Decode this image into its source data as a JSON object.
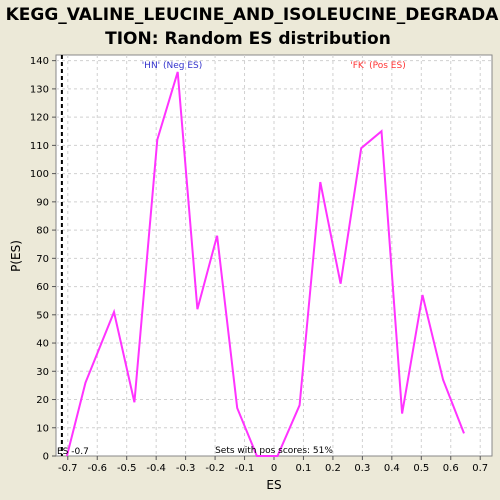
{
  "chart_data": {
    "type": "line",
    "title_lines": [
      "KEGG_VALINE_LEUCINE_AND_ISOLEUCINE_DEGRADA",
      "TION: Random ES distribution"
    ],
    "xlabel": "ES",
    "ylabel": "P(ES)",
    "xlim": [
      -0.74,
      0.74
    ],
    "ylim": [
      0,
      142
    ],
    "x_ticks": [
      -0.7,
      -0.6,
      -0.5,
      -0.4,
      -0.3,
      -0.2,
      -0.1,
      0.0,
      0.1,
      0.2,
      0.3,
      0.4,
      0.5,
      0.6,
      0.7
    ],
    "x_tick_labels": [
      "-0.7",
      "-0.6",
      "-0.5",
      "-0.4",
      "-0.3",
      "-0.2",
      "-0.1",
      "0",
      "0.1",
      "0.2",
      "0.3",
      "0.4",
      "0.5",
      "0.6",
      "0.7"
    ],
    "y_ticks": [
      0,
      10,
      20,
      30,
      40,
      50,
      60,
      70,
      80,
      90,
      100,
      110,
      120,
      130,
      140
    ],
    "y_tick_labels": [
      "0",
      "10",
      "20",
      "30",
      "40",
      "50",
      "60",
      "70",
      "80",
      "90",
      "100",
      "110",
      "120",
      "130",
      "140"
    ],
    "grid": true,
    "series": [
      {
        "color": "#ff33ff",
        "x": [
          -0.703,
          -0.64,
          -0.543,
          -0.474,
          -0.396,
          -0.327,
          -0.26,
          -0.193,
          -0.125,
          -0.058,
          0.012,
          0.087,
          0.157,
          0.226,
          0.296,
          0.365,
          0.435,
          0.504,
          0.574,
          0.645
        ],
        "y": [
          0,
          26,
          51,
          19,
          112,
          136,
          52,
          78,
          17,
          0,
          0,
          18,
          97,
          61,
          109,
          115,
          15,
          57,
          27,
          8
        ]
      }
    ],
    "vline": {
      "x": -0.72,
      "style": "dashed",
      "color": "#000000"
    },
    "annotations": {
      "neg_label": "'HN' (Neg ES)",
      "neg_color": "#3333cc",
      "pos_label": "'FK' (Pos ES)",
      "pos_color": "#ff3333",
      "es_label": "ES -0.7",
      "sets_label": "Sets with pos scores: 51%"
    }
  }
}
